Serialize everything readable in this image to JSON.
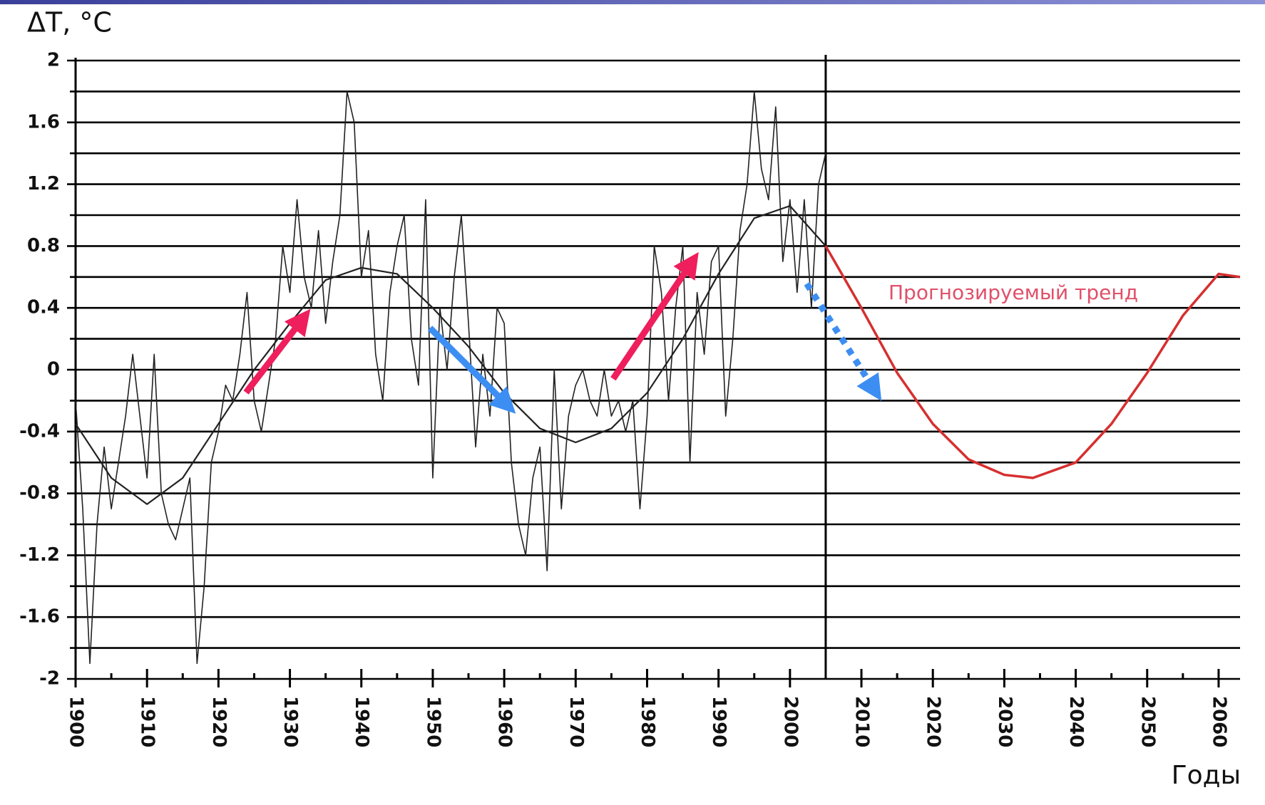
{
  "chart_data": {
    "type": "line",
    "y_label": "ΔT, °C",
    "x_label": "Годы",
    "annotation": "Прогнозируемый тренд",
    "xlim": [
      1900,
      2063
    ],
    "xticks": [
      1900,
      1910,
      1920,
      1930,
      1940,
      1950,
      1960,
      1970,
      1980,
      1990,
      2000,
      2010,
      2020,
      2030,
      2040,
      2050,
      2060
    ],
    "xminor": [
      1905,
      1915,
      1925,
      1935,
      1945,
      1955,
      1965,
      1975,
      1985,
      1995,
      2015,
      2025,
      2035,
      2045,
      2055
    ],
    "vline": 2005,
    "ylim": [
      -2,
      2
    ],
    "yticks": [
      -2,
      -1.6,
      -1.2,
      -0.8,
      -0.4,
      0,
      0.4,
      0.8,
      1.2,
      1.6,
      2
    ],
    "ygrid": [
      -1.8,
      -1.4,
      -1,
      -0.6,
      -0.2,
      0.2,
      0.6,
      1,
      1.4,
      1.8
    ],
    "grid": true,
    "series": [
      {
        "color": "#222222",
        "width": 1.6,
        "x": [
          1900,
          1901,
          1902,
          1903,
          1904,
          1905,
          1906,
          1907,
          1908,
          1909,
          1910,
          1911,
          1912,
          1913,
          1914,
          1915,
          1916,
          1917,
          1918,
          1919,
          1920,
          1921,
          1922,
          1923,
          1924,
          1925,
          1926,
          1927,
          1928,
          1929,
          1930,
          1931,
          1932,
          1933,
          1934,
          1935,
          1936,
          1937,
          1938,
          1939,
          1940,
          1941,
          1942,
          1943,
          1944,
          1945,
          1946,
          1947,
          1948,
          1949,
          1950,
          1951,
          1952,
          1953,
          1954,
          1955,
          1956,
          1957,
          1958,
          1959,
          1960,
          1961,
          1962,
          1963,
          1964,
          1965,
          1966,
          1967,
          1968,
          1969,
          1970,
          1971,
          1972,
          1973,
          1974,
          1975,
          1976,
          1977,
          1978,
          1979,
          1980,
          1981,
          1982,
          1983,
          1984,
          1985,
          1986,
          1987,
          1988,
          1989,
          1990,
          1991,
          1992,
          1993,
          1994,
          1995,
          1996,
          1997,
          1998,
          1999,
          2000,
          2001,
          2002,
          2003,
          2004,
          2005
        ],
        "values": [
          -0.2,
          -0.9,
          -1.9,
          -1.0,
          -0.5,
          -0.9,
          -0.6,
          -0.3,
          0.1,
          -0.3,
          -0.7,
          0.1,
          -0.8,
          -1.0,
          -1.1,
          -0.9,
          -0.7,
          -1.9,
          -1.4,
          -0.6,
          -0.4,
          -0.1,
          -0.2,
          0.1,
          0.5,
          -0.2,
          -0.4,
          -0.1,
          0.2,
          0.8,
          0.5,
          1.1,
          0.6,
          0.4,
          0.9,
          0.3,
          0.7,
          1.0,
          1.8,
          1.6,
          0.6,
          0.9,
          0.1,
          -0.2,
          0.5,
          0.8,
          1.0,
          0.2,
          -0.1,
          1.1,
          -0.7,
          0.4,
          0.0,
          0.6,
          1.0,
          0.3,
          -0.5,
          0.1,
          -0.3,
          0.4,
          0.3,
          -0.6,
          -1.0,
          -1.2,
          -0.7,
          -0.5,
          -1.3,
          0.0,
          -0.9,
          -0.3,
          -0.1,
          0.0,
          -0.2,
          -0.3,
          0.0,
          -0.3,
          -0.2,
          -0.4,
          -0.2,
          -0.9,
          -0.3,
          0.8,
          0.5,
          -0.2,
          0.4,
          0.8,
          -0.6,
          0.5,
          0.1,
          0.7,
          0.8,
          -0.3,
          0.2,
          0.9,
          1.2,
          1.8,
          1.3,
          1.1,
          1.7,
          0.7,
          1.1,
          0.5,
          1.1,
          0.4,
          1.2,
          1.4
        ]
      },
      {
        "color": "#222222",
        "width": 2.2,
        "x": [
          1900,
          1905,
          1910,
          1915,
          1920,
          1925,
          1930,
          1935,
          1940,
          1945,
          1950,
          1955,
          1960,
          1965,
          1970,
          1975,
          1980,
          1985,
          1990,
          1995,
          2000,
          2005
        ],
        "values": [
          -0.35,
          -0.7,
          -0.87,
          -0.7,
          -0.35,
          0.0,
          0.3,
          0.58,
          0.66,
          0.62,
          0.4,
          0.15,
          -0.15,
          -0.38,
          -0.47,
          -0.38,
          -0.15,
          0.2,
          0.62,
          0.98,
          1.06,
          0.8
        ]
      },
      {
        "color": "#d62f2f",
        "width": 3.5,
        "x": [
          2005,
          2010,
          2015,
          2020,
          2025,
          2030,
          2034,
          2040,
          2045,
          2050,
          2055,
          2060,
          2063
        ],
        "values": [
          0.8,
          0.4,
          -0.02,
          -0.35,
          -0.58,
          -0.68,
          -0.7,
          -0.6,
          -0.35,
          -0.02,
          0.35,
          0.62,
          0.6
        ]
      }
    ]
  }
}
